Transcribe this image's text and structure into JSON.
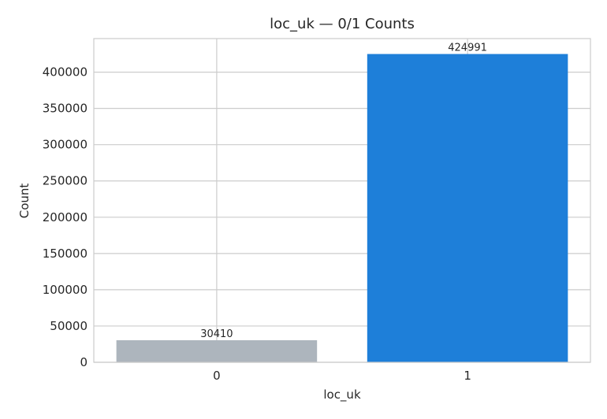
{
  "chart_data": {
    "type": "bar",
    "title": "loc_uk — 0/1 Counts",
    "xlabel": "loc_uk",
    "ylabel": "Count",
    "categories": [
      "0",
      "1"
    ],
    "values": [
      30410,
      424991
    ],
    "data_labels": [
      "30410",
      "424991"
    ],
    "bar_colors": [
      "#adb5bd",
      "#1e7fd9"
    ],
    "ylim": [
      0,
      446240
    ],
    "yticks": [
      0,
      50000,
      100000,
      150000,
      200000,
      250000,
      300000,
      350000,
      400000
    ],
    "ytick_labels": [
      "0",
      "50000",
      "100000",
      "150000",
      "200000",
      "250000",
      "300000",
      "350000",
      "400000"
    ],
    "grid": true,
    "legend": "none"
  }
}
